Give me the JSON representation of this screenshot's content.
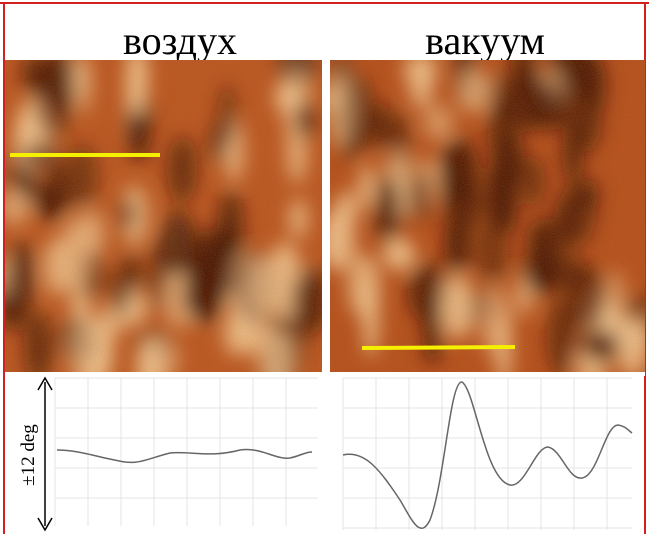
{
  "panels": [
    {
      "title": "воздух"
    },
    {
      "title": "вакуум"
    }
  ],
  "profile_axis_label": "±12 deg"
}
